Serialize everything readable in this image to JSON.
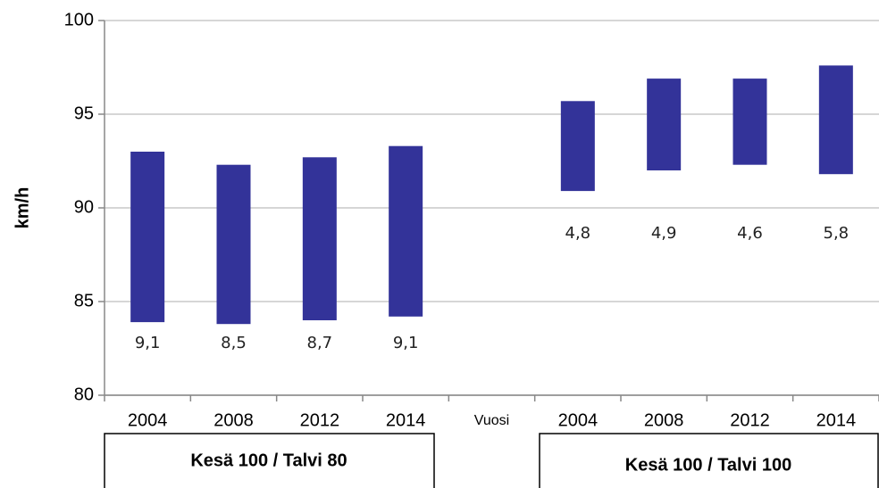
{
  "chart_data": {
    "type": "floating-bar",
    "y_label": "km/h",
    "categories": [
      "2004",
      "2008",
      "2012",
      "2014",
      "Vuosi",
      "2004",
      "2008",
      "2012",
      "2014"
    ],
    "base": [
      83.9,
      83.8,
      84.0,
      84.2,
      null,
      90.9,
      92.0,
      92.3,
      91.8
    ],
    "values": [
      9.1,
      8.5,
      8.7,
      9.1,
      null,
      4.8,
      4.9,
      4.6,
      5.8
    ],
    "value_labels": [
      "9,1",
      "8,5",
      "8,7",
      "9,1",
      null,
      "4,8",
      "4,9",
      "4,6",
      "5,8"
    ],
    "color": "#333399",
    "ylim": [
      80,
      100
    ],
    "yticks": [
      80,
      85,
      90,
      95,
      100
    ],
    "grid": true,
    "groups": [
      "Kesä 100 / Talvi 80",
      "Kesä 100 / Talvi 100"
    ]
  }
}
